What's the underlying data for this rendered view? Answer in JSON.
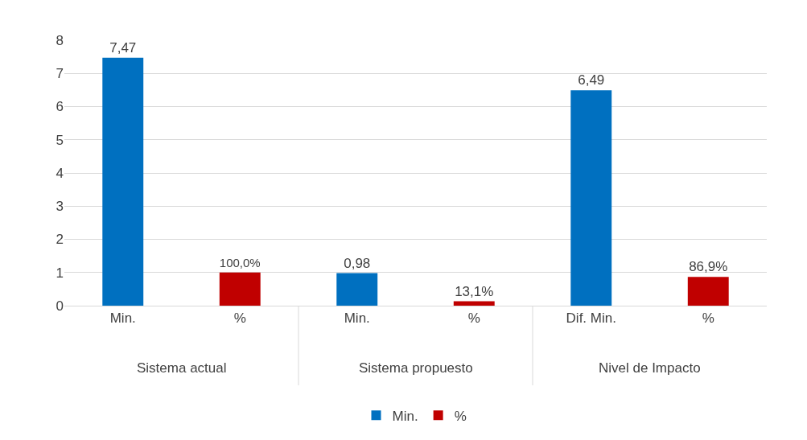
{
  "chart_data": {
    "type": "bar",
    "categories": [
      "Min.",
      "%",
      "Min.",
      "%",
      "Dif. Min.",
      "%"
    ],
    "series": [
      {
        "name": "Min.",
        "color": "#0070c0",
        "values": [
          7.47,
          null,
          0.98,
          null,
          6.49,
          null
        ],
        "value_labels": [
          "7,47",
          null,
          "0,98",
          null,
          "6,49",
          null
        ]
      },
      {
        "name": "%",
        "color": "#c00000",
        "values": [
          null,
          1.0,
          null,
          0.131,
          null,
          0.869
        ],
        "value_labels": [
          null,
          "100,0%",
          null,
          "13,1%",
          null,
          "86,9%"
        ]
      }
    ],
    "annotations": [
      "Sistema actual",
      "Sistema propuesto",
      "Nivel de Impacto"
    ],
    "ylim": [
      0,
      8
    ],
    "yticks": [
      0,
      1,
      2,
      3,
      4,
      5,
      6,
      7,
      8
    ],
    "grid": "y",
    "legend": "bottom"
  }
}
